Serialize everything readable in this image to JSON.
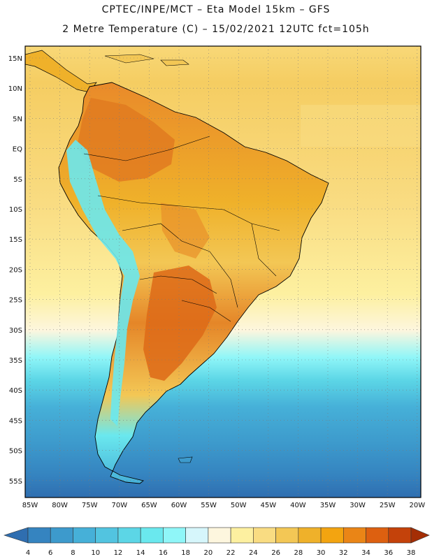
{
  "header": {
    "line1": "CPTEC/INPE/MCT –  Eta Model 15km – GFS",
    "line2": "2 Metre Temperature (C) – 15/02/2021 12UTC fct=105h"
  },
  "map": {
    "lat_labels": [
      "15N",
      "10N",
      "5N",
      "EQ",
      "5S",
      "10S",
      "15S",
      "20S",
      "25S",
      "30S",
      "35S",
      "40S",
      "45S",
      "50S",
      "55S"
    ],
    "lon_labels": [
      "85W",
      "80W",
      "75W",
      "70W",
      "65W",
      "60W",
      "55W",
      "50W",
      "45W",
      "40W",
      "35W",
      "30W",
      "25W",
      "20W"
    ]
  },
  "legend": {
    "labels": [
      "4",
      "6",
      "8",
      "10",
      "12",
      "14",
      "16",
      "18",
      "20",
      "22",
      "24",
      "26",
      "28",
      "30",
      "32",
      "34",
      "36",
      "38"
    ],
    "colors": [
      "#2f6eb0",
      "#3584c0",
      "#3d9acc",
      "#46b0d8",
      "#52c4e0",
      "#5cd6e6",
      "#6ae8ee",
      "#8ff6f8",
      "#d6f6fb",
      "#fdf6de",
      "#fdf0a0",
      "#f9dc82",
      "#f3c755",
      "#efb12a",
      "#f3a410",
      "#ea8516",
      "#dd6010",
      "#c4420a",
      "#a42e05"
    ]
  },
  "colors": {
    "land_hot": "#e07a20",
    "land_warm": "#f0b040",
    "ocean_warm": "#f8d878",
    "ocean_cold": "#3b7fc4"
  }
}
